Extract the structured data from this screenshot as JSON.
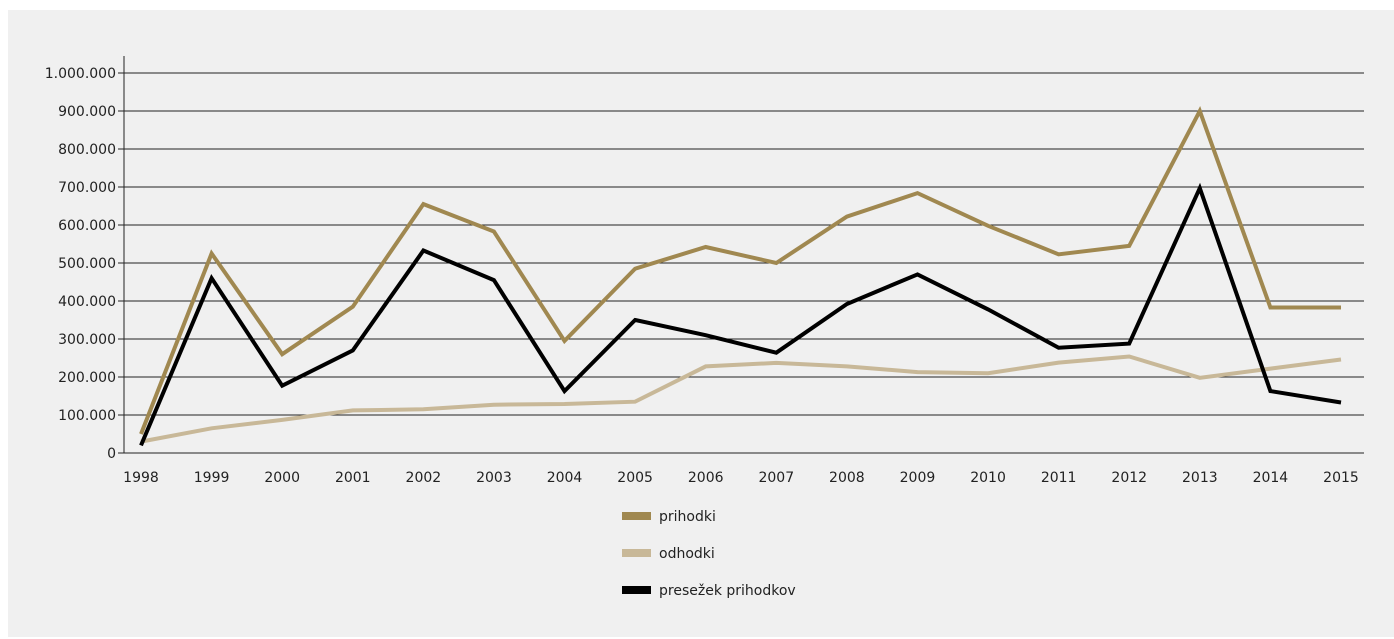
{
  "chart_data": {
    "type": "line",
    "title": "",
    "xlabel": "",
    "ylabel": "",
    "categories": [
      "1998",
      "1999",
      "2000",
      "2001",
      "2002",
      "2003",
      "2004",
      "2005",
      "2006",
      "2007",
      "2008",
      "2009",
      "2010",
      "2011",
      "2012",
      "2013",
      "2014",
      "2015"
    ],
    "ylim": [
      0,
      1000000
    ],
    "y_ticks": [
      0,
      100000,
      200000,
      300000,
      400000,
      500000,
      600000,
      700000,
      800000,
      900000,
      1000000
    ],
    "y_tick_labels": [
      "0",
      "100.000",
      "200.000",
      "300.000",
      "400.000",
      "500.000",
      "600.000",
      "700.000",
      "800.000",
      "900.000",
      "1.000.000"
    ],
    "grid": "horizontal",
    "legend_position": "bottom-center",
    "series": [
      {
        "name": "prihodki",
        "color": "#a08850",
        "values": [
          50000,
          525000,
          260000,
          385000,
          655000,
          583000,
          295000,
          485000,
          542000,
          500000,
          622000,
          684000,
          598000,
          523000,
          545000,
          900000,
          383000,
          383000
        ]
      },
      {
        "name": "odhodki",
        "color": "#c8b898",
        "values": [
          30000,
          65000,
          87000,
          112000,
          115000,
          127000,
          129000,
          135000,
          228000,
          237000,
          228000,
          213000,
          210000,
          238000,
          254000,
          198000,
          222000,
          246000
        ]
      },
      {
        "name": "presežek prihodkov",
        "color": "#000000",
        "values": [
          20000,
          460000,
          177000,
          270000,
          533000,
          455000,
          163000,
          350000,
          310000,
          264000,
          392000,
          470000,
          378000,
          277000,
          288000,
          697000,
          163000,
          133000
        ]
      }
    ]
  }
}
